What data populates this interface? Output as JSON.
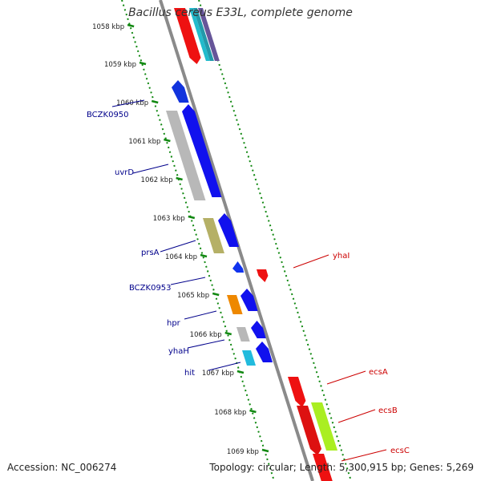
{
  "title": "Bacillus cereus E33L, complete genome",
  "accession": "Accession: NC_006274",
  "summary": "Topology: circular; Length: 5,300,915 bp; Genes: 5,269",
  "colors": {
    "left_label": "#00008b",
    "right_label": "#cc0000",
    "tick": "#118811",
    "backbone": "#8a8a8a"
  },
  "ticks": [
    "1058 kbp",
    "1059 kbp",
    "1060 kbp",
    "1061 kbp",
    "1062 kbp",
    "1063 kbp",
    "1064 kbp",
    "1065 kbp",
    "1066 kbp",
    "1067 kbp",
    "1068 kbp",
    "1069 kbp"
  ],
  "left_labels": [
    "BCZK0950",
    "uvrD",
    "prsA",
    "BCZK0953",
    "hpr",
    "yhaH",
    "hit"
  ],
  "right_labels": [
    "yhaI",
    "ecsA",
    "ecsB",
    "ecsC"
  ]
}
